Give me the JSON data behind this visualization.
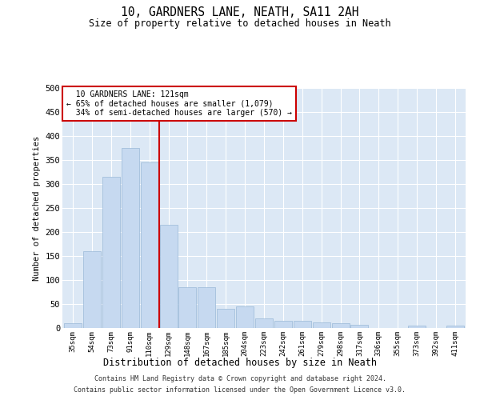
{
  "title": "10, GARDNERS LANE, NEATH, SA11 2AH",
  "subtitle": "Size of property relative to detached houses in Neath",
  "xlabel": "Distribution of detached houses by size in Neath",
  "ylabel": "Number of detached properties",
  "property_label": "10 GARDNERS LANE: 121sqm",
  "pct_smaller": 65,
  "n_smaller": 1079,
  "pct_larger_semi": 34,
  "n_larger_semi": 570,
  "categories": [
    "35sqm",
    "54sqm",
    "73sqm",
    "91sqm",
    "110sqm",
    "129sqm",
    "148sqm",
    "167sqm",
    "185sqm",
    "204sqm",
    "223sqm",
    "242sqm",
    "261sqm",
    "279sqm",
    "298sqm",
    "317sqm",
    "336sqm",
    "355sqm",
    "373sqm",
    "392sqm",
    "411sqm"
  ],
  "values": [
    10,
    160,
    315,
    375,
    345,
    215,
    85,
    85,
    40,
    45,
    20,
    15,
    15,
    12,
    10,
    7,
    0,
    0,
    5,
    0,
    5
  ],
  "bar_color": "#c6d9f0",
  "bar_edge_color": "#9ab8d8",
  "vline_x_index": 5.0,
  "vline_color": "#cc0000",
  "annotation_box_color": "#cc0000",
  "background_color": "#dce8f5",
  "grid_color": "#ffffff",
  "footer_line1": "Contains HM Land Registry data © Crown copyright and database right 2024.",
  "footer_line2": "Contains public sector information licensed under the Open Government Licence v3.0.",
  "ylim": [
    0,
    500
  ],
  "yticks": [
    0,
    50,
    100,
    150,
    200,
    250,
    300,
    350,
    400,
    450,
    500
  ]
}
